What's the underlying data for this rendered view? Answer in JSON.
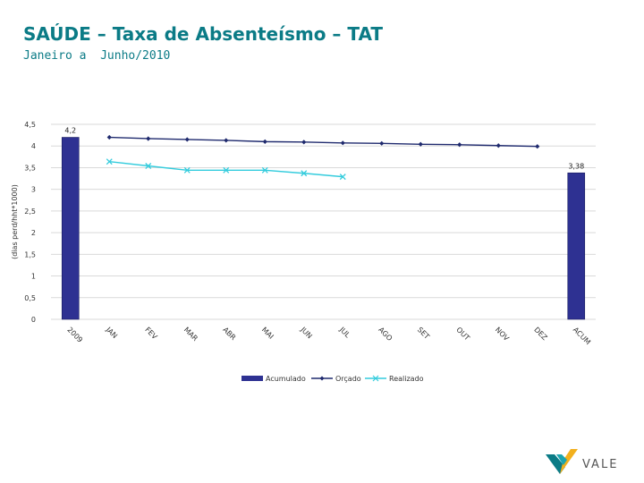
{
  "header": {
    "title": "SAÚDE – Taxa de Absenteísmo – TAT",
    "subtitle": "Janeiro a  Junho/2010"
  },
  "logo": {
    "text": "VALE"
  },
  "colors": {
    "title": "#0b7b86",
    "acumulado": "#2e3192",
    "orcado": "#1f2a6e",
    "realizado": "#33ccdd",
    "grid": "#d9d9d9"
  },
  "chart_data": {
    "type": "bar+line",
    "categories": [
      "2009",
      "JAN",
      "FEV",
      "MAR",
      "ABR",
      "MAI",
      "JUN",
      "JUL",
      "AGO",
      "SET",
      "OUT",
      "NOV",
      "DEZ",
      "ACUM"
    ],
    "ylabel": "(dias perd/hht*1000)",
    "ylim": [
      0,
      4.5
    ],
    "yticks": [
      "0",
      "0,5",
      "1",
      "1,5",
      "2",
      "2,5",
      "3",
      "3,5",
      "4",
      "4,5"
    ],
    "grid": true,
    "legend_position": "bottom",
    "series": [
      {
        "name": "Acumulado",
        "kind": "bar",
        "values": [
          4.2,
          null,
          null,
          null,
          null,
          null,
          null,
          null,
          null,
          null,
          null,
          null,
          null,
          3.38
        ],
        "labels": [
          "4,2",
          "",
          "",
          "",
          "",
          "",
          "",
          "",
          "",
          "",
          "",
          "",
          "",
          "3,38"
        ]
      },
      {
        "name": "Orçado",
        "kind": "line",
        "marker": "diamond",
        "values": [
          null,
          4.2,
          4.17,
          4.15,
          4.13,
          4.1,
          4.09,
          4.07,
          4.06,
          4.04,
          4.03,
          4.01,
          3.99,
          null
        ]
      },
      {
        "name": "Realizado",
        "kind": "line",
        "marker": "x",
        "values": [
          null,
          3.64,
          3.54,
          3.44,
          3.44,
          3.44,
          3.37,
          3.29,
          null,
          null,
          null,
          null,
          null,
          null
        ]
      }
    ]
  }
}
